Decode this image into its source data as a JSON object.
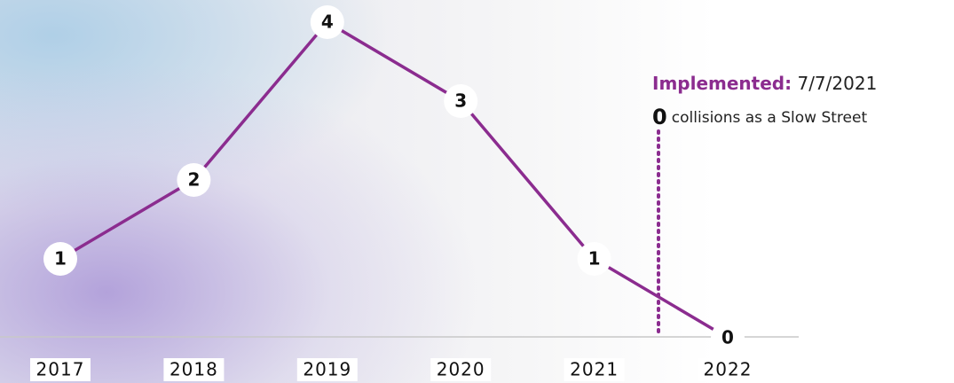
{
  "chart_data": {
    "type": "line",
    "categories": [
      "2017",
      "2018",
      "2019",
      "2020",
      "2021",
      "2022"
    ],
    "values": [
      1,
      2,
      4,
      3,
      1,
      0
    ],
    "color": "#8b2c8f",
    "annotation": {
      "label": "Implemented:",
      "date": "7/7/2021",
      "count": 0,
      "count_text": "collisions as a Slow Street"
    }
  }
}
